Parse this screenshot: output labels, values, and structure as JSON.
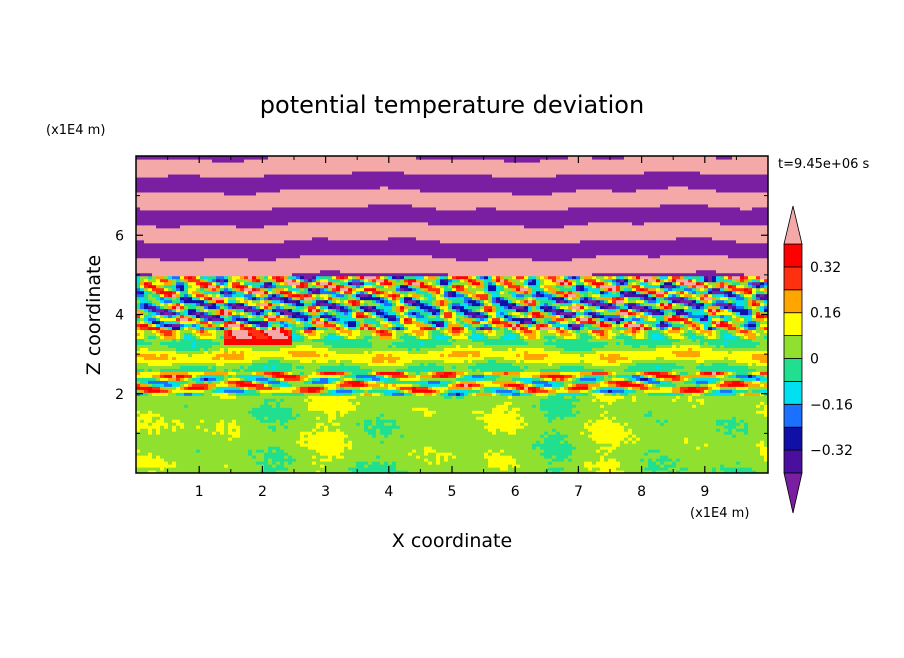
{
  "chart_data": {
    "type": "heatmap",
    "title": "potential temperature deviation",
    "xlabel": "X coordinate",
    "ylabel": "Z coordinate",
    "x_unit": "(x1E4 m)",
    "y_unit": "(x1E4 m)",
    "time_label": "t=9.45e+06 s",
    "xlim": [
      0,
      10
    ],
    "ylim": [
      0,
      8
    ],
    "xticks": [
      "1",
      "2",
      "3",
      "4",
      "5",
      "6",
      "7",
      "8",
      "9"
    ],
    "yticks": [
      "2",
      "4",
      "6"
    ],
    "colorbar": {
      "levels": [
        -0.4,
        -0.32,
        -0.24,
        -0.16,
        -0.08,
        0,
        0.08,
        0.16,
        0.24,
        0.32,
        0.4
      ],
      "tick_values": [
        0.32,
        0.16,
        0,
        -0.16,
        -0.32
      ],
      "tick_labels": [
        "0.32",
        "0.16",
        "0",
        "−0.16",
        "−0.32"
      ],
      "colors": [
        "#7a1fa2",
        "#4b0fa0",
        "#1010a8",
        "#1a70ff",
        "#00e0f0",
        "#20e090",
        "#90e030",
        "#ffff00",
        "#ffa500",
        "#ff3010",
        "#ff0000",
        "#f5a8a8"
      ],
      "extend": "both"
    },
    "layers": [
      {
        "z_range": [
          0,
          2.0
        ],
        "pattern": "green-dominant, mostly 0 to 0.08 with patches of -0.08 to 0"
      },
      {
        "z_range": [
          2.0,
          2.6
        ],
        "pattern": "mixed yellow/orange/pink with dark blue streaks"
      },
      {
        "z_range": [
          2.6,
          3.6
        ],
        "pattern": "green/yellow bands with red patch near x=1.5-2.5 at z~3.5"
      },
      {
        "z_range": [
          3.6,
          5.0
        ],
        "pattern": "turbulent mix of all levels, dark blue and cyan streaks"
      },
      {
        "z_range": [
          5.0,
          8.0
        ],
        "pattern": "alternating horizontal bands of pink (>0.4) and purple (<-0.4)"
      }
    ]
  }
}
